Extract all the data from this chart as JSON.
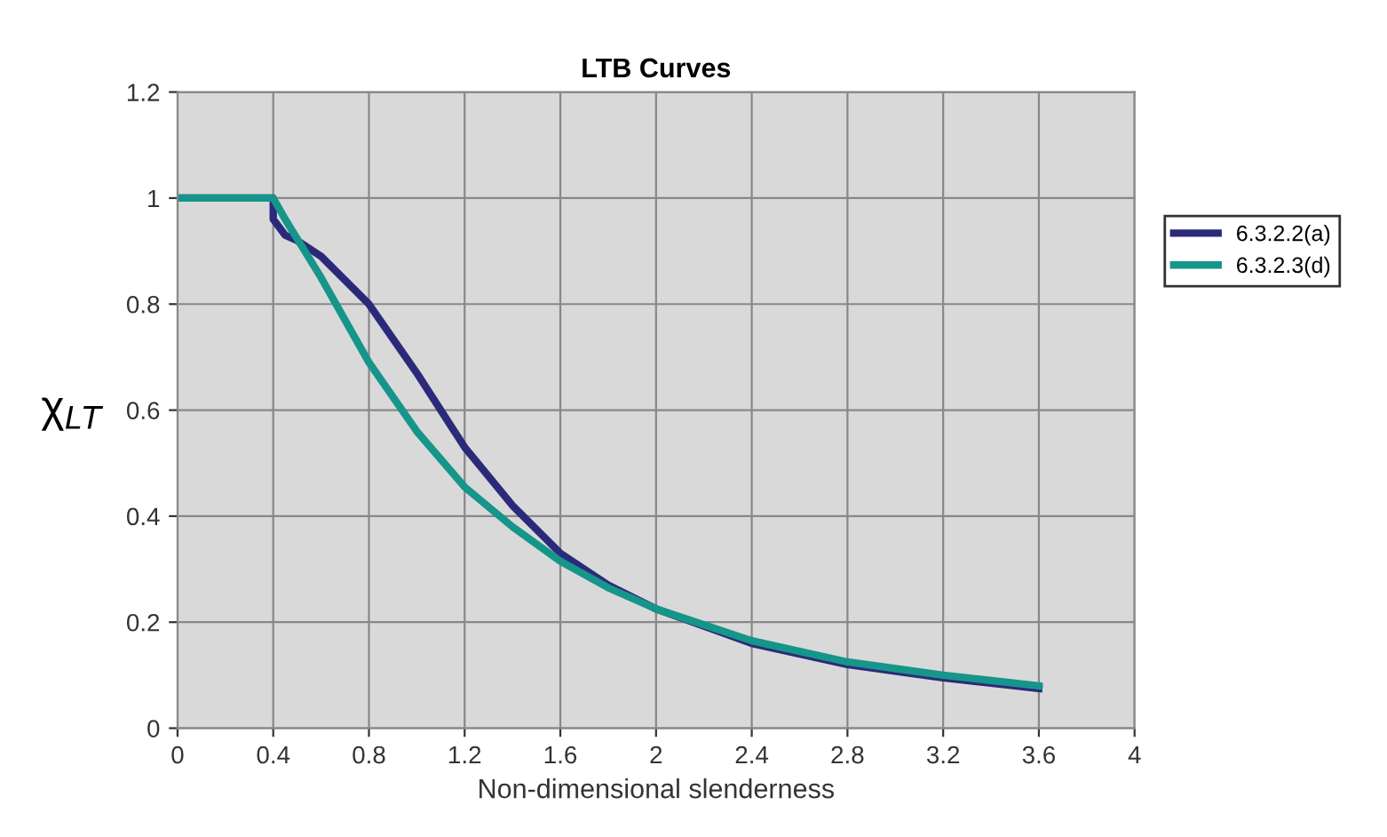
{
  "chart_data": {
    "type": "line",
    "title": "LTB Curves",
    "xlabel": "Non-dimensional slenderness",
    "ylabel": "χ$_{LT}$",
    "xlim": [
      0,
      4
    ],
    "xticks": [
      0,
      0.4,
      0.8,
      1.2,
      1.6,
      2,
      2.4,
      2.8,
      3.2,
      3.6,
      4
    ],
    "ylim": [
      0,
      1.2
    ],
    "yticks": [
      0,
      0.2,
      0.4,
      0.6,
      0.8,
      1,
      1.2
    ],
    "grid": true,
    "legend": "right",
    "marker": "none",
    "line_style": "solid",
    "series": [
      {
        "name": "6.3.2.2(a)",
        "color": "#2b2a7a",
        "x": [
          0,
          0.4,
          0.4,
          0.45,
          0.5,
          0.6,
          0.8,
          1.0,
          1.2,
          1.4,
          1.6,
          1.8,
          2.0,
          2.4,
          2.8,
          3.2,
          3.6
        ],
        "values": [
          1,
          1,
          0.96,
          0.93,
          0.92,
          0.89,
          0.8,
          0.67,
          0.53,
          0.42,
          0.33,
          0.27,
          0.225,
          0.16,
          0.12,
          0.095,
          0.075
        ]
      },
      {
        "name": "6.3.2.3(d)",
        "color": "#16958a",
        "x": [
          0,
          0.2,
          0.4,
          0.45,
          0.6,
          0.8,
          1.0,
          1.2,
          1.4,
          1.6,
          1.8,
          2.0,
          2.4,
          2.8,
          3.2,
          3.6
        ],
        "values": [
          1,
          1,
          1,
          0.96,
          0.85,
          0.69,
          0.56,
          0.455,
          0.38,
          0.315,
          0.265,
          0.225,
          0.165,
          0.125,
          0.1,
          0.08
        ]
      }
    ]
  }
}
